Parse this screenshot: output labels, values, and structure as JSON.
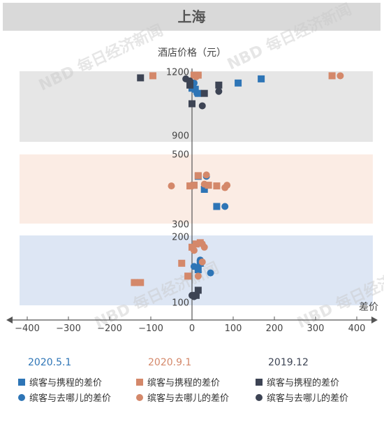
{
  "title": "上海",
  "colors": {
    "s2020_5_1": "#2e75b6",
    "s2020_9_1": "#d4886a",
    "s2019_12": "#3d4454",
    "band_top": "#e6e6e6",
    "band_mid": "#fbece4",
    "band_bottom": "#dde6f4",
    "axis": "#555555"
  },
  "watermark": "NBD 每日经济新闻",
  "chart_data": {
    "type": "scatter",
    "xlabel": "差价",
    "ylabel": "酒店价格（元）",
    "xlim": [
      -400,
      400
    ],
    "x_ticks": [
      "−400",
      "−300",
      "−200",
      "−100",
      "0",
      "100",
      "200",
      "300",
      "400"
    ],
    "y_segments": [
      {
        "range": [
          900,
          1200
        ],
        "ticks": [
          "1200",
          "900"
        ]
      },
      {
        "range": [
          300,
          500
        ],
        "ticks": [
          "500",
          "300"
        ]
      },
      {
        "range": [
          100,
          200
        ],
        "ticks": [
          "200",
          "100"
        ]
      }
    ],
    "legend": [
      {
        "group": "2020.5.1",
        "color_key": "s2020_5_1",
        "items": [
          {
            "marker": "square",
            "label": "缤客与携程的差价"
          },
          {
            "marker": "circle",
            "label": "缤客与去哪儿的差价"
          }
        ]
      },
      {
        "group": "2020.9.1",
        "color_key": "s2020_9_1",
        "items": [
          {
            "marker": "square",
            "label": "缤客与携程的差价"
          },
          {
            "marker": "circle",
            "label": "缤客与去哪儿的差价"
          }
        ]
      },
      {
        "group": "2019.12",
        "color_key": "s2019_12",
        "items": [
          {
            "marker": "square",
            "label": "缤客与携程的差价"
          },
          {
            "marker": "circle",
            "label": "缤客与去哪儿的差价"
          }
        ]
      }
    ],
    "series": [
      {
        "name": "2020.5.1 缤客与携程的差价",
        "color_key": "s2020_5_1",
        "marker": "square",
        "points": [
          [
            168,
            1170
          ],
          [
            112,
            1150
          ],
          [
            0,
            1125
          ],
          [
            8,
            1120
          ],
          [
            15,
            1100
          ],
          [
            15,
            438
          ],
          [
            5,
            412
          ],
          [
            30,
            400
          ],
          [
            60,
            350
          ],
          [
            15,
            150
          ],
          [
            20,
            160
          ]
        ]
      },
      {
        "name": "2020.5.1 缤客与去哪儿的差价",
        "color_key": "s2020_5_1",
        "marker": "circle",
        "points": [
          [
            5,
            1150
          ],
          [
            12,
            1100
          ],
          [
            35,
            438
          ],
          [
            80,
            350
          ],
          [
            45,
            145
          ],
          [
            5,
            155
          ],
          [
            20,
            165
          ],
          [
            10,
            110
          ]
        ]
      },
      {
        "name": "2020.9.1 缤客与携程的差价",
        "color_key": "s2020_9_1",
        "marker": "square",
        "points": [
          [
            -95,
            1185
          ],
          [
            340,
            1185
          ],
          [
            5,
            1188
          ],
          [
            15,
            1188
          ],
          [
            -5,
            410
          ],
          [
            5,
            412
          ],
          [
            15,
            440
          ],
          [
            40,
            412
          ],
          [
            60,
            410
          ],
          [
            -25,
            160
          ],
          [
            -10,
            140
          ],
          [
            -125,
            130
          ],
          [
            -140,
            130
          ],
          [
            0,
            185
          ],
          [
            10,
            190
          ],
          [
            20,
            192
          ]
        ]
      },
      {
        "name": "2020.9.1 缤客与去哪儿的差价",
        "color_key": "s2020_9_1",
        "marker": "circle",
        "points": [
          [
            360,
            1185
          ],
          [
            15,
            1188
          ],
          [
            10,
            1180
          ],
          [
            -50,
            410
          ],
          [
            30,
            415
          ],
          [
            35,
            442
          ],
          [
            80,
            405
          ],
          [
            85,
            412
          ],
          [
            25,
            162
          ],
          [
            15,
            140
          ],
          [
            -140,
            130
          ],
          [
            5,
            180
          ],
          [
            30,
            185
          ],
          [
            25,
            190
          ]
        ]
      },
      {
        "name": "2019.12 缤客与携程的差价",
        "color_key": "s2019_12",
        "marker": "square",
        "points": [
          [
            -125,
            1175
          ],
          [
            -5,
            1140
          ],
          [
            65,
            1140
          ],
          [
            30,
            1100
          ],
          [
            0,
            1050
          ],
          [
            15,
            118
          ],
          [
            10,
            110
          ]
        ]
      },
      {
        "name": "2019.12 缤客与去哪儿的差价",
        "color_key": "s2019_12",
        "marker": "circle",
        "points": [
          [
            -15,
            1170
          ],
          [
            -5,
            1160
          ],
          [
            65,
            1110
          ],
          [
            25,
            1040
          ],
          [
            0,
            110
          ],
          [
            5,
            108
          ]
        ]
      }
    ]
  }
}
